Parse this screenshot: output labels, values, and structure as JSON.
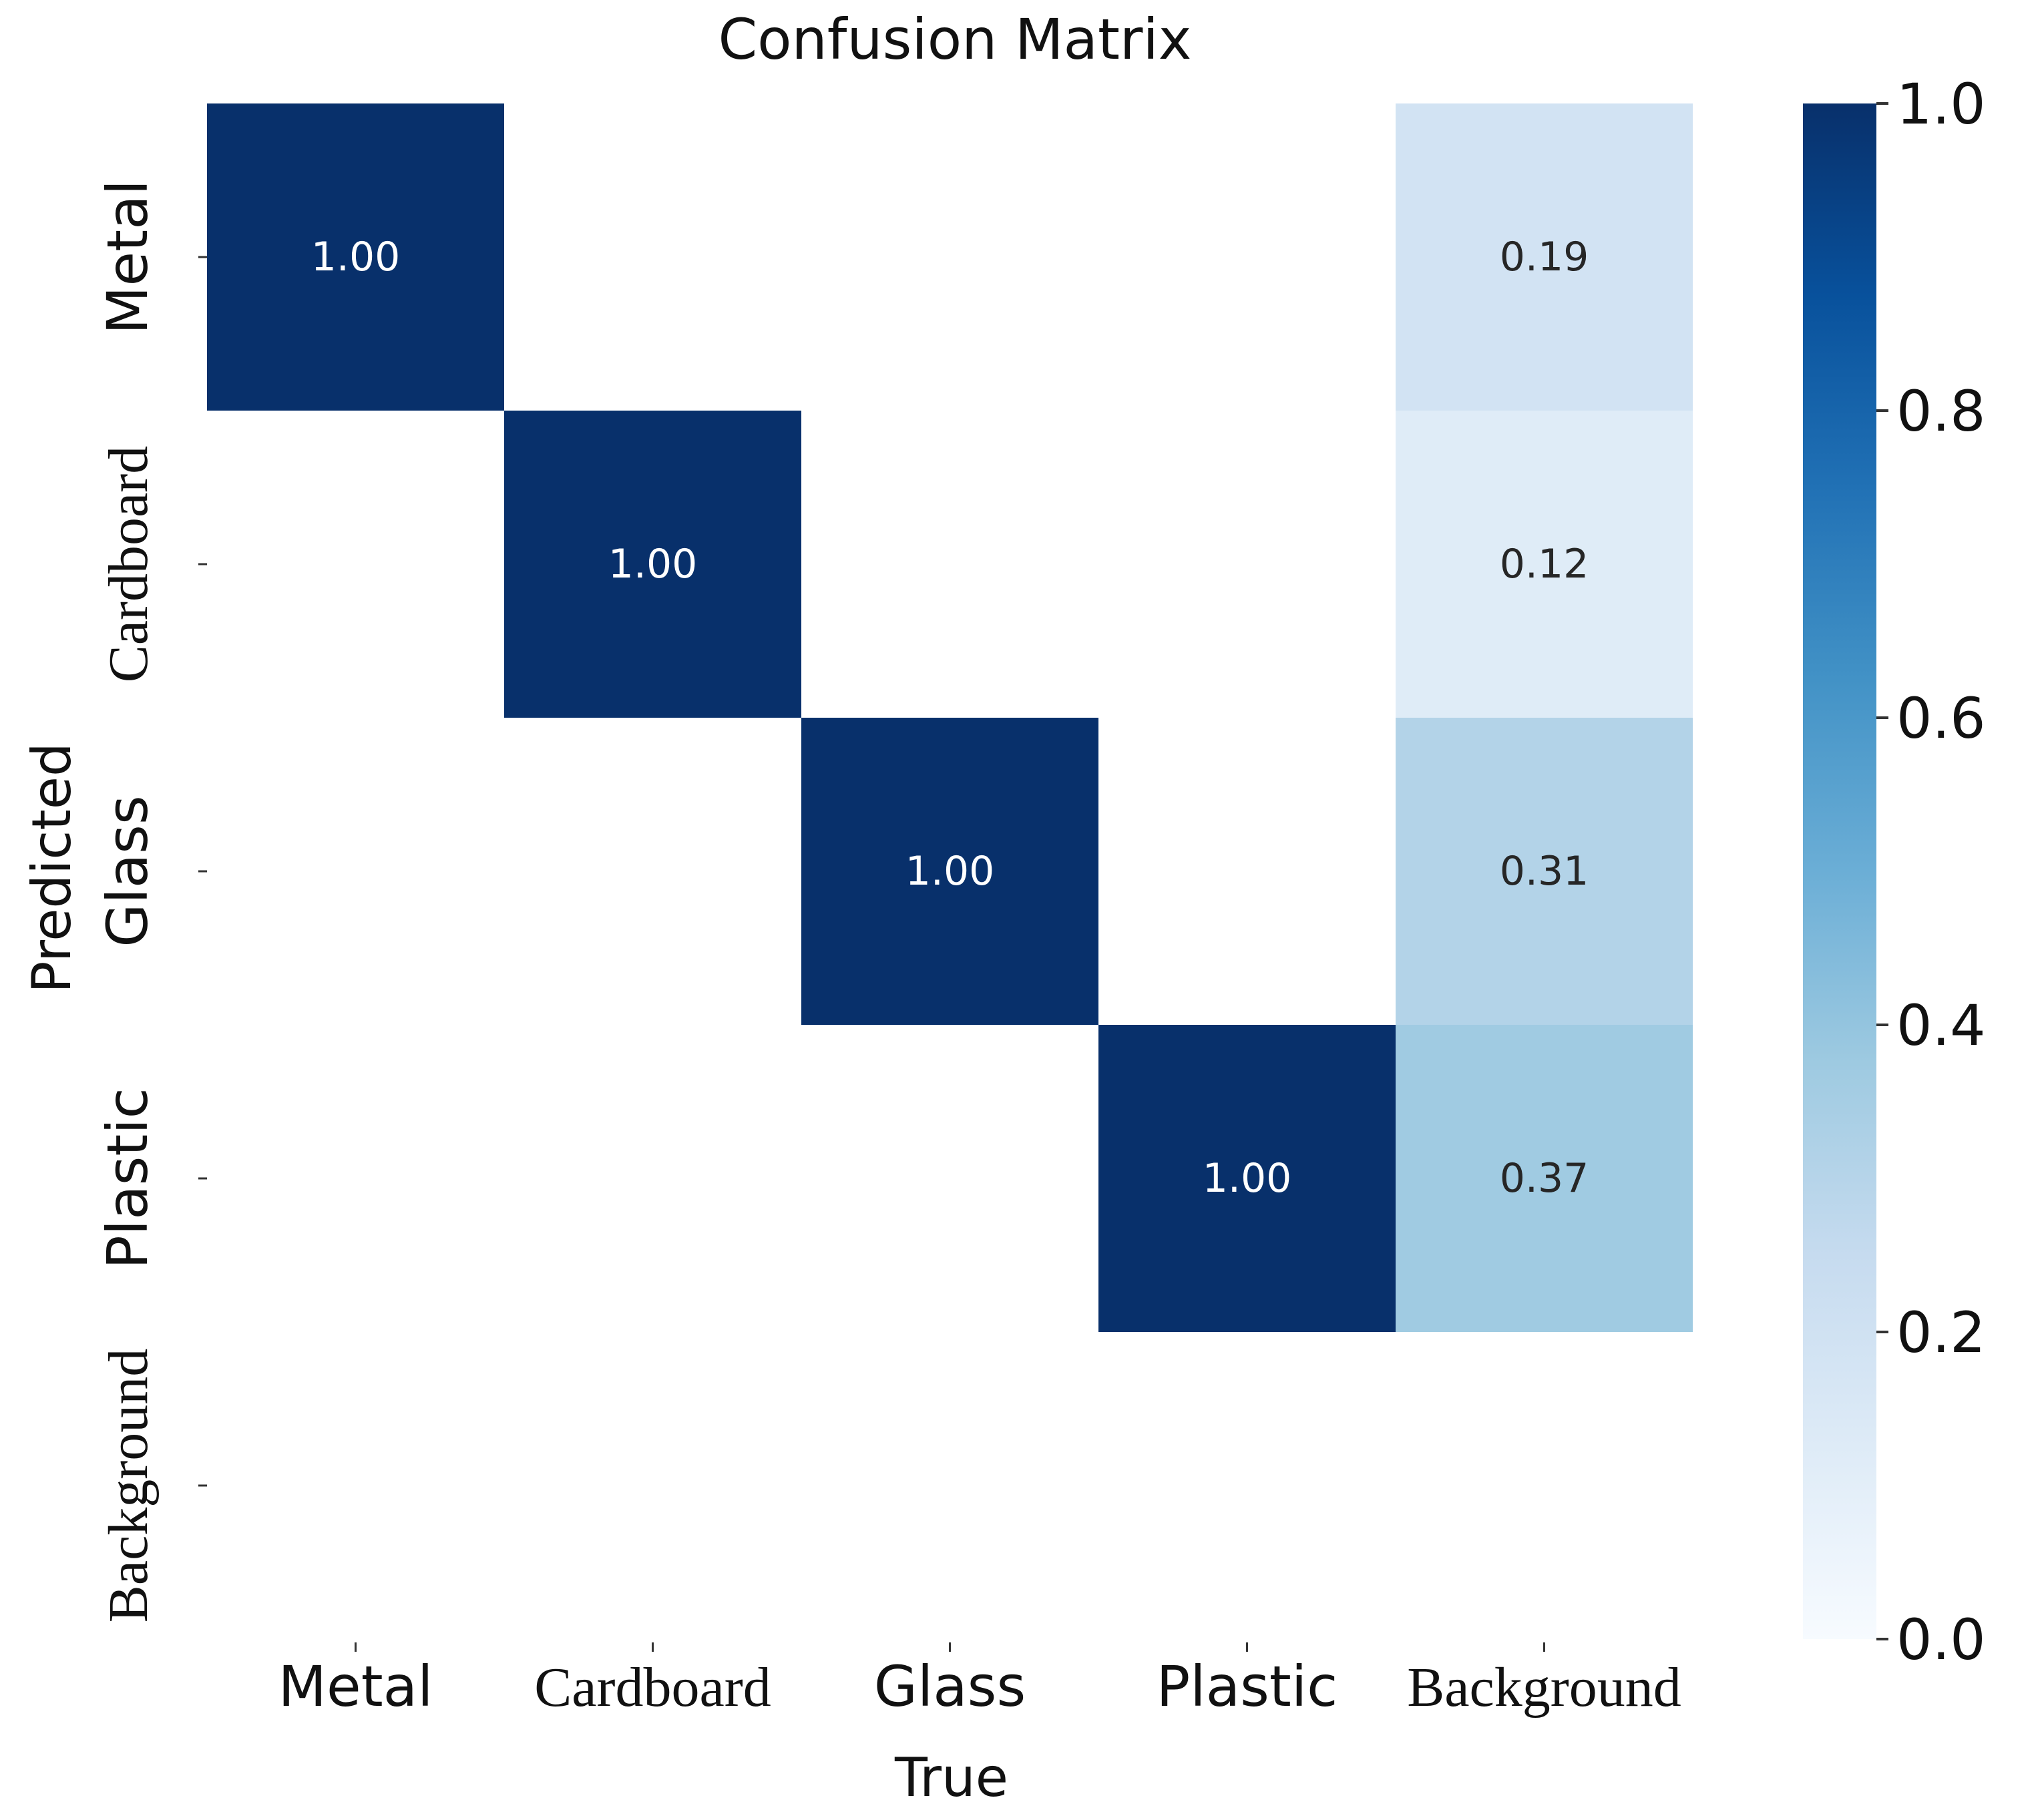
{
  "chart_data": {
    "type": "heatmap",
    "title": "Confusion Matrix",
    "xlabel": "True",
    "ylabel": "Predicted",
    "x_categories": [
      "Metal",
      "Cardboard",
      "Glass",
      "Plastic",
      "Background"
    ],
    "y_categories": [
      "Metal",
      "Cardboard",
      "Glass",
      "Plastic",
      "Background"
    ],
    "matrix": [
      [
        1.0,
        null,
        null,
        null,
        0.19
      ],
      [
        null,
        1.0,
        null,
        null,
        0.12
      ],
      [
        null,
        null,
        1.0,
        null,
        0.31
      ],
      [
        null,
        null,
        null,
        1.0,
        0.37
      ],
      [
        null,
        null,
        null,
        null,
        null
      ]
    ],
    "annotation_format": "0.00",
    "colormap": "Blues",
    "colorbar": {
      "range": [
        0.0,
        1.0
      ],
      "ticks": [
        0.0,
        0.2,
        0.4,
        0.6,
        0.8,
        1.0
      ],
      "tick_labels": [
        "0.0",
        "0.2",
        "0.4",
        "0.6",
        "0.8",
        "1.0"
      ]
    }
  }
}
